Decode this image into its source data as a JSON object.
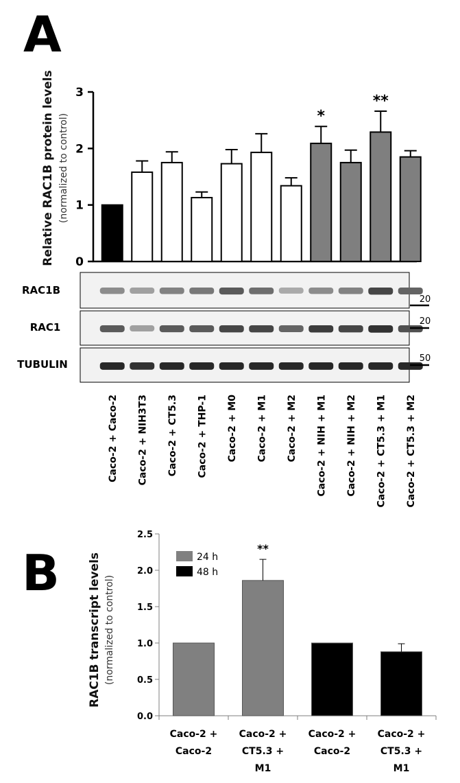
{
  "panel_a_letter": "A",
  "panel_b_letter": "B",
  "blots": {
    "rows": [
      {
        "label": "RAC1B",
        "mw": "20",
        "intensities": [
          0.45,
          0.35,
          0.5,
          0.55,
          0.7,
          0.6,
          0.3,
          0.45,
          0.5,
          0.8,
          0.65
        ]
      },
      {
        "label": "RAC1",
        "mw": "20",
        "intensities": [
          0.7,
          0.35,
          0.7,
          0.7,
          0.8,
          0.8,
          0.65,
          0.85,
          0.8,
          0.9,
          0.75
        ]
      },
      {
        "label": "TUBULIN",
        "mw": "50",
        "intensities": [
          0.95,
          0.9,
          0.95,
          0.95,
          0.95,
          0.95,
          0.95,
          0.95,
          0.95,
          0.95,
          0.95
        ]
      }
    ]
  },
  "chart_data": [
    {
      "type": "bar",
      "ylabel": "Relative RAC1B protein levels",
      "ylabel_sub": "(normalized to control)",
      "ylim": [
        0,
        3
      ],
      "yticks": [
        "0",
        "1",
        "2",
        "3"
      ],
      "categories": [
        "Caco-2 + Caco-2",
        "Caco-2 + NIH3T3",
        "Caco-2 + CT5.3",
        "Caco-2 + THP-1",
        "Caco-2 + M0",
        "Caco-2 + M1",
        "Caco-2 + M2",
        "Caco-2 + NIH + M1",
        "Caco-2 + NIH + M2",
        "Caco-2 + CT5.3 + M1",
        "Caco-2 + CT5.3 + M2"
      ],
      "values": [
        1.0,
        1.58,
        1.75,
        1.13,
        1.73,
        1.93,
        1.34,
        2.09,
        1.75,
        2.29,
        1.85
      ],
      "errors": [
        0,
        0.2,
        0.19,
        0.1,
        0.25,
        0.33,
        0.14,
        0.3,
        0.22,
        0.37,
        0.11
      ],
      "fill_colors": [
        "#000000",
        "#ffffff",
        "#ffffff",
        "#ffffff",
        "#ffffff",
        "#ffffff",
        "#ffffff",
        "#7f7f7f",
        "#7f7f7f",
        "#7f7f7f",
        "#7f7f7f"
      ],
      "significance": [
        "",
        "",
        "",
        "",
        "",
        "",
        "",
        "*",
        "",
        "**",
        ""
      ]
    },
    {
      "type": "bar",
      "ylabel": "RAC1B transcript levels",
      "ylabel_sub": "(normalized to control)",
      "ylim": [
        0,
        2.5
      ],
      "yticks": [
        "0.0",
        "0.5",
        "1.0",
        "1.5",
        "2.0",
        "2.5"
      ],
      "categories": [
        [
          "Caco-2 +",
          "Caco-2"
        ],
        [
          "Caco-2 +",
          "CT5.3 +",
          "M1"
        ],
        [
          "Caco-2 +",
          "Caco-2"
        ],
        [
          "Caco-2 +",
          "CT5.3 +",
          "M1"
        ]
      ],
      "values": [
        1.0,
        1.86,
        1.0,
        0.88
      ],
      "errors": [
        0,
        0.29,
        0,
        0.11
      ],
      "series_index": [
        0,
        0,
        1,
        1
      ],
      "significance": [
        "",
        "**",
        "",
        ""
      ],
      "legend": [
        {
          "name": "24 h",
          "color": "#808080"
        },
        {
          "name": "48 h",
          "color": "#000000"
        }
      ],
      "legend_position": "top-left",
      "grid": false
    }
  ]
}
